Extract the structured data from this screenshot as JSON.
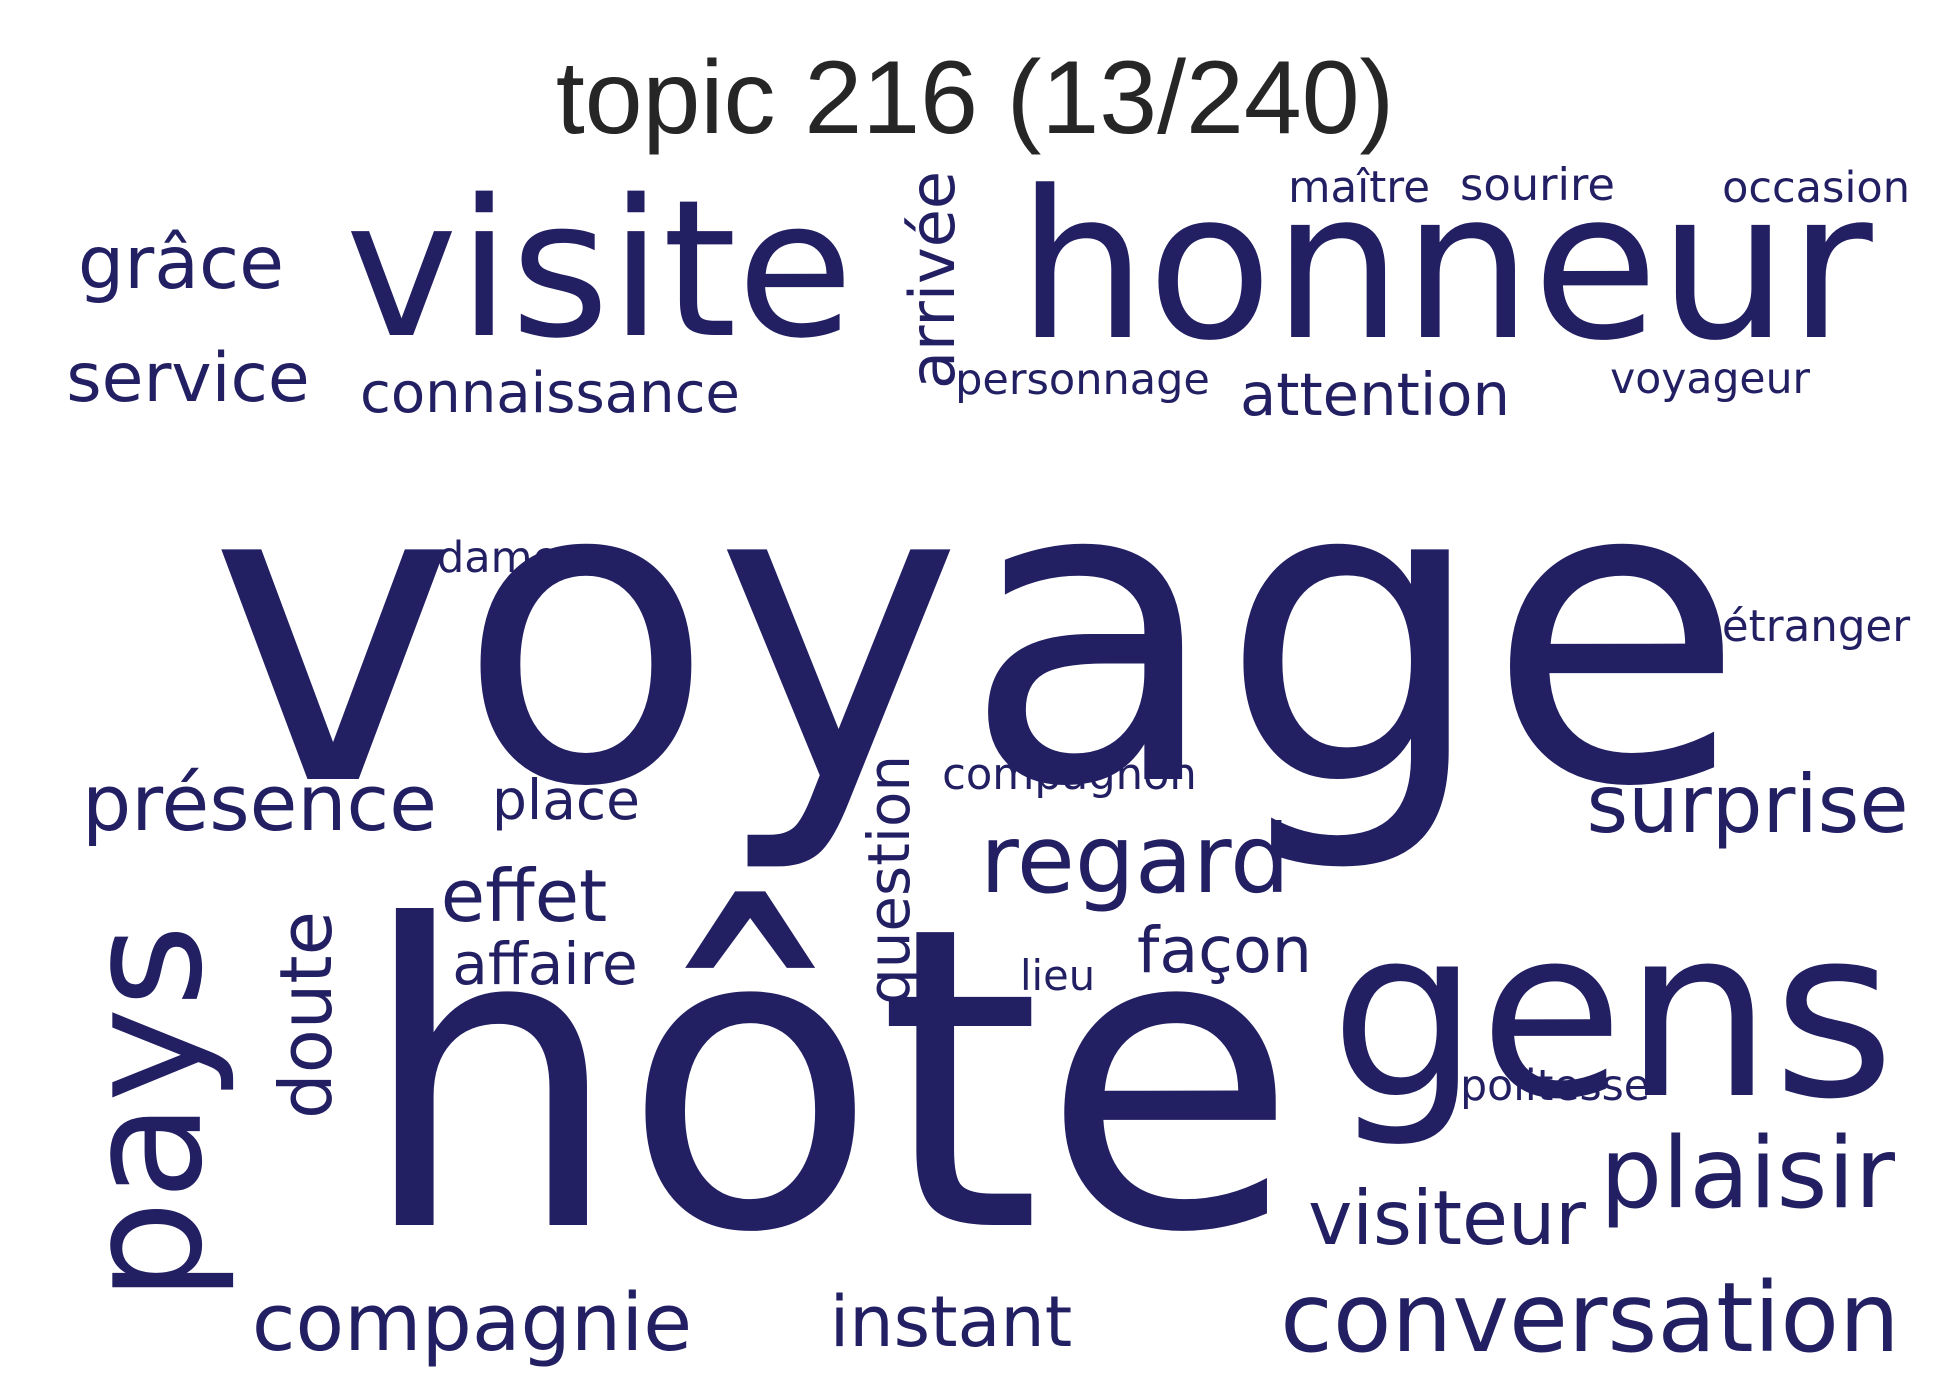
{
  "title": "topic 216 (13/240)",
  "word_color": "#221f63",
  "words": [
    {
      "text": "voyage",
      "rotated": false
    },
    {
      "text": "hôte",
      "rotated": false
    },
    {
      "text": "honneur",
      "rotated": false
    },
    {
      "text": "visite",
      "rotated": false
    },
    {
      "text": "gens",
      "rotated": false
    },
    {
      "text": "pays",
      "rotated": true
    },
    {
      "text": "conversation",
      "rotated": false
    },
    {
      "text": "plaisir",
      "rotated": false
    },
    {
      "text": "regard",
      "rotated": false
    },
    {
      "text": "compagnie",
      "rotated": false
    },
    {
      "text": "instant",
      "rotated": false
    },
    {
      "text": "visiteur",
      "rotated": false
    },
    {
      "text": "surprise",
      "rotated": false
    },
    {
      "text": "présence",
      "rotated": false
    },
    {
      "text": "doute",
      "rotated": true
    },
    {
      "text": "arrivée",
      "rotated": true
    },
    {
      "text": "service",
      "rotated": false
    },
    {
      "text": "effet",
      "rotated": false
    },
    {
      "text": "grâce",
      "rotated": false
    },
    {
      "text": "connaissance",
      "rotated": false
    },
    {
      "text": "attention",
      "rotated": false
    },
    {
      "text": "question",
      "rotated": true
    },
    {
      "text": "façon",
      "rotated": false
    },
    {
      "text": "affaire",
      "rotated": false
    },
    {
      "text": "place",
      "rotated": false
    },
    {
      "text": "étranger",
      "rotated": false
    },
    {
      "text": "occasion",
      "rotated": false
    },
    {
      "text": "maître",
      "rotated": false
    },
    {
      "text": "sourire",
      "rotated": false
    },
    {
      "text": "personnage",
      "rotated": false
    },
    {
      "text": "voyageur",
      "rotated": false
    },
    {
      "text": "compagnon",
      "rotated": false
    },
    {
      "text": "politesse",
      "rotated": false
    },
    {
      "text": "dame",
      "rotated": false
    },
    {
      "text": "lieu",
      "rotated": false
    }
  ]
}
